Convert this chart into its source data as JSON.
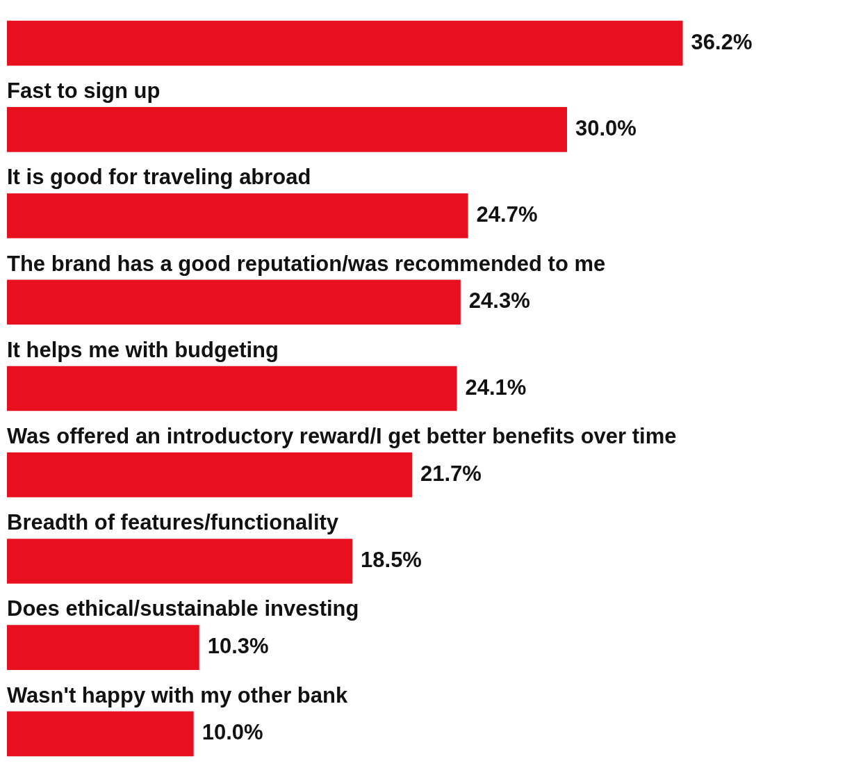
{
  "chart_data": {
    "type": "bar",
    "orientation": "horizontal",
    "categories": [
      null,
      "Fast to sign up",
      "It is good for traveling abroad",
      "The brand has a good reputation/was recommended to me",
      "It helps me with budgeting",
      "Was offered an introductory reward/I get better benefits over time",
      "Breadth of features/functionality",
      "Does ethical/sustainable investing",
      "Wasn't happy with my other bank"
    ],
    "values": [
      36.2,
      30.0,
      24.7,
      24.3,
      24.1,
      21.7,
      18.5,
      10.3,
      10.0
    ],
    "value_labels": [
      "36.2%",
      "30.0%",
      "24.7%",
      "24.3%",
      "24.1%",
      "21.7%",
      "18.5%",
      "10.3%",
      "10.0%"
    ],
    "color": "#e8101e"
  }
}
